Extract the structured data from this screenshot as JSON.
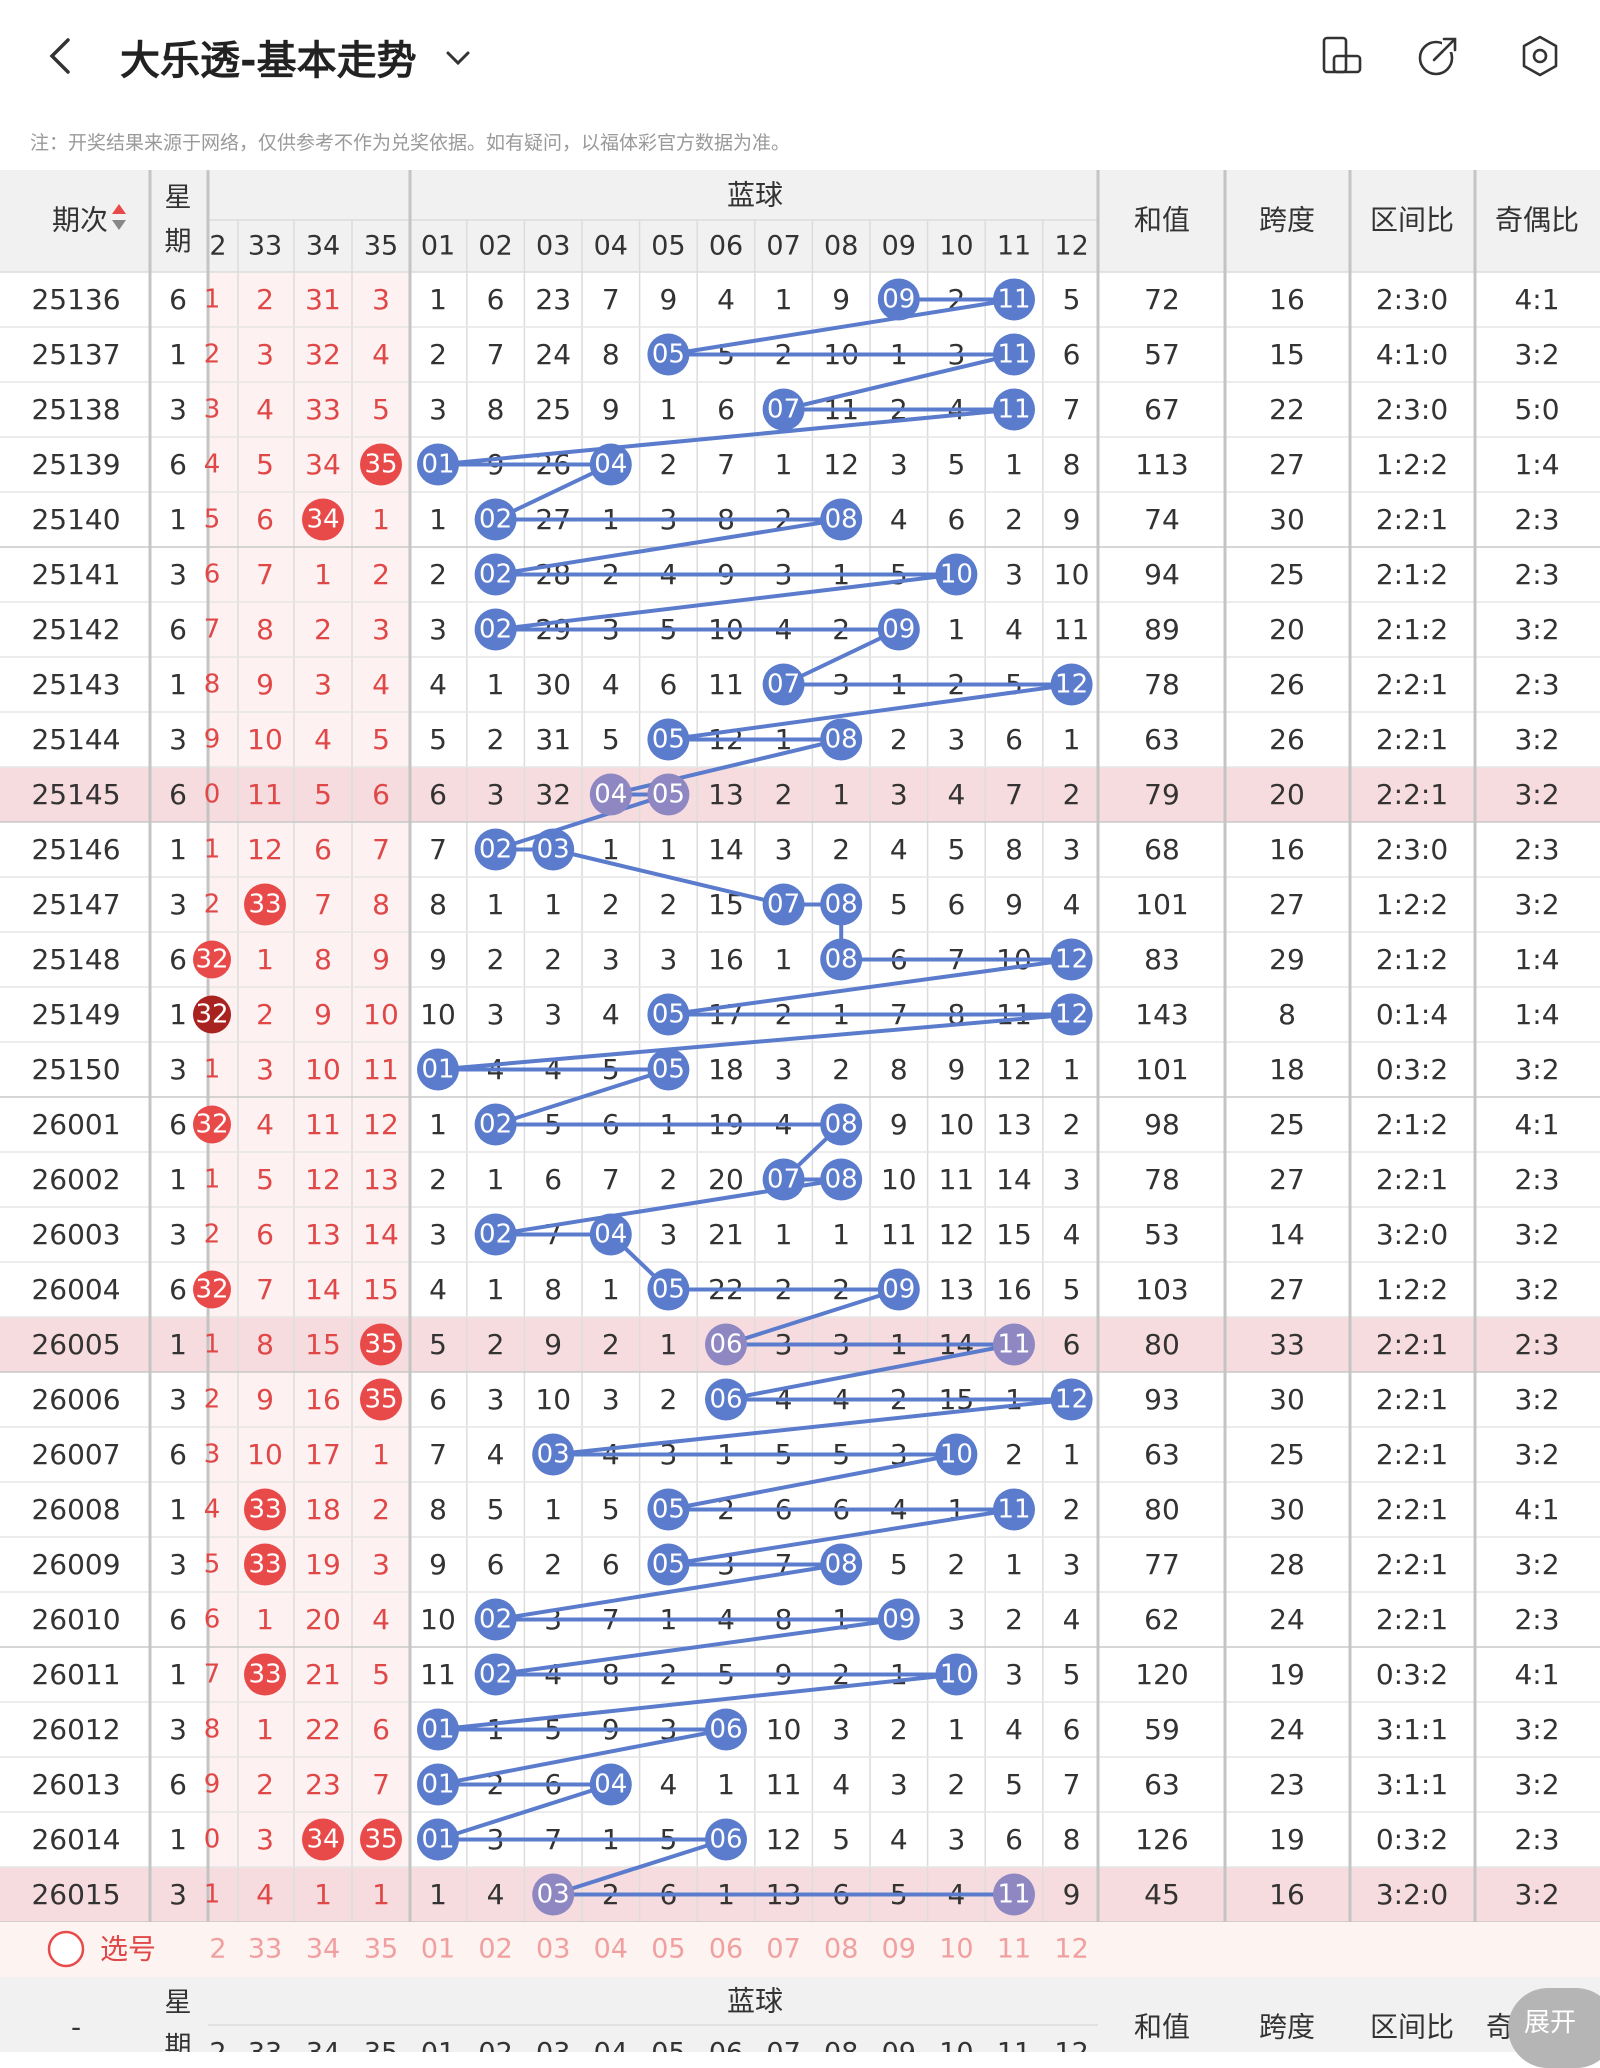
{
  "header": {
    "title": "大乐透-基本走势",
    "note": "注：开奖结果来源于网络，仅供参考不作为兑奖依据。如有疑问，以福体彩官方数据为准。"
  },
  "table": {
    "col_period": "期次",
    "col_week": "星期",
    "blue_group_label": "蓝球",
    "red_partial_header": [
      "2",
      "33",
      "34",
      "35"
    ],
    "blue_headers": [
      "01",
      "02",
      "03",
      "04",
      "05",
      "06",
      "07",
      "08",
      "09",
      "10",
      "11",
      "12"
    ],
    "col_sum": "和值",
    "col_span": "跨度",
    "col_zone": "区间比",
    "col_oddeven": "奇偶比",
    "rows": [
      {
        "period": "25136",
        "week": "6",
        "r": [
          "1",
          "2",
          "31",
          "3"
        ],
        "rh": [
          false,
          false,
          false,
          false
        ],
        "blue": [
          1,
          6,
          23,
          7,
          9,
          4,
          1,
          9,
          0,
          2,
          0,
          5
        ],
        "hit": [
          9,
          11
        ],
        "sum": "72",
        "span": "16",
        "zone": "2:3:0",
        "oe": "4:1",
        "hl": false
      },
      {
        "period": "25137",
        "week": "1",
        "r": [
          "2",
          "3",
          "32",
          "4"
        ],
        "rh": [
          false,
          false,
          false,
          false
        ],
        "blue": [
          2,
          7,
          24,
          8,
          0,
          5,
          2,
          10,
          1,
          3,
          0,
          6
        ],
        "hit": [
          5,
          11
        ],
        "sum": "57",
        "span": "15",
        "zone": "4:1:0",
        "oe": "3:2",
        "hl": false
      },
      {
        "period": "25138",
        "week": "3",
        "r": [
          "3",
          "4",
          "33",
          "5"
        ],
        "rh": [
          false,
          false,
          false,
          false
        ],
        "blue": [
          3,
          8,
          25,
          9,
          1,
          6,
          0,
          11,
          2,
          4,
          0,
          7
        ],
        "hit": [
          7,
          11
        ],
        "sum": "67",
        "span": "22",
        "zone": "2:3:0",
        "oe": "5:0",
        "hl": false
      },
      {
        "period": "25139",
        "week": "6",
        "r": [
          "4",
          "5",
          "34",
          "35"
        ],
        "rh": [
          false,
          false,
          false,
          true
        ],
        "blue": [
          0,
          9,
          26,
          0,
          2,
          7,
          1,
          12,
          3,
          5,
          1,
          8
        ],
        "hit": [
          1,
          4
        ],
        "sum": "113",
        "span": "27",
        "zone": "1:2:2",
        "oe": "1:4",
        "hl": false
      },
      {
        "period": "25140",
        "week": "1",
        "r": [
          "5",
          "6",
          "34",
          "1"
        ],
        "rh": [
          false,
          false,
          true,
          false
        ],
        "blue": [
          1,
          0,
          27,
          1,
          3,
          8,
          2,
          0,
          4,
          6,
          2,
          9
        ],
        "hit": [
          2,
          8
        ],
        "sum": "74",
        "span": "30",
        "zone": "2:2:1",
        "oe": "2:3",
        "hl": false
      },
      {
        "period": "25141",
        "week": "3",
        "r": [
          "6",
          "7",
          "1",
          "2"
        ],
        "rh": [
          false,
          false,
          false,
          false
        ],
        "blue": [
          2,
          0,
          28,
          2,
          4,
          9,
          3,
          1,
          5,
          0,
          3,
          10
        ],
        "hit": [
          2,
          10
        ],
        "sum": "94",
        "span": "25",
        "zone": "2:1:2",
        "oe": "2:3",
        "hl": false
      },
      {
        "period": "25142",
        "week": "6",
        "r": [
          "7",
          "8",
          "2",
          "3"
        ],
        "rh": [
          false,
          false,
          false,
          false
        ],
        "blue": [
          3,
          0,
          29,
          3,
          5,
          10,
          4,
          2,
          0,
          1,
          4,
          11
        ],
        "hit": [
          2,
          9
        ],
        "sum": "89",
        "span": "20",
        "zone": "2:1:2",
        "oe": "3:2",
        "hl": false
      },
      {
        "period": "25143",
        "week": "1",
        "r": [
          "8",
          "9",
          "3",
          "4"
        ],
        "rh": [
          false,
          false,
          false,
          false
        ],
        "blue": [
          4,
          1,
          30,
          4,
          6,
          11,
          0,
          3,
          1,
          2,
          5,
          0
        ],
        "hit": [
          7,
          12
        ],
        "sum": "78",
        "span": "26",
        "zone": "2:2:1",
        "oe": "2:3",
        "hl": false
      },
      {
        "period": "25144",
        "week": "3",
        "r": [
          "9",
          "10",
          "4",
          "5"
        ],
        "rh": [
          false,
          false,
          false,
          false
        ],
        "blue": [
          5,
          2,
          31,
          5,
          0,
          12,
          1,
          0,
          2,
          3,
          6,
          1
        ],
        "hit": [
          5,
          8
        ],
        "sum": "63",
        "span": "26",
        "zone": "2:2:1",
        "oe": "3:2",
        "hl": false
      },
      {
        "period": "25145",
        "week": "6",
        "r": [
          "10",
          "11",
          "5",
          "6"
        ],
        "rh": [
          false,
          false,
          false,
          false
        ],
        "blue": [
          6,
          3,
          32,
          0,
          0,
          13,
          2,
          1,
          3,
          4,
          7,
          2
        ],
        "hit": [
          4,
          5
        ],
        "sum": "79",
        "span": "20",
        "zone": "2:2:1",
        "oe": "3:2",
        "hl": true
      },
      {
        "period": "25146",
        "week": "1",
        "r": [
          "11",
          "12",
          "6",
          "7"
        ],
        "rh": [
          false,
          false,
          false,
          false
        ],
        "blue": [
          7,
          0,
          0,
          1,
          1,
          14,
          3,
          2,
          4,
          5,
          8,
          3
        ],
        "hit": [
          2,
          3
        ],
        "sum": "68",
        "span": "16",
        "zone": "2:3:0",
        "oe": "2:3",
        "hl": false
      },
      {
        "period": "25147",
        "week": "3",
        "r": [
          "12",
          "33",
          "7",
          "8"
        ],
        "rh": [
          false,
          true,
          false,
          false
        ],
        "blue": [
          8,
          1,
          1,
          2,
          2,
          15,
          0,
          0,
          5,
          6,
          9,
          4
        ],
        "hit": [
          7,
          8
        ],
        "sum": "101",
        "span": "27",
        "zone": "1:2:2",
        "oe": "3:2",
        "hl": false
      },
      {
        "period": "25148",
        "week": "6",
        "r": [
          "32",
          "1",
          "8",
          "9"
        ],
        "rh": [
          true,
          false,
          false,
          false
        ],
        "blue": [
          9,
          2,
          2,
          3,
          3,
          16,
          1,
          0,
          6,
          7,
          10,
          0
        ],
        "hit": [
          8,
          12
        ],
        "sum": "83",
        "span": "29",
        "zone": "2:1:2",
        "oe": "1:4",
        "hl": false
      },
      {
        "period": "25149",
        "week": "1",
        "r": [
          "32",
          "2",
          "9",
          "10"
        ],
        "rh": [
          true,
          false,
          false,
          false
        ],
        "blue": [
          10,
          3,
          3,
          4,
          0,
          17,
          2,
          1,
          7,
          8,
          11,
          0
        ],
        "hit": [
          5,
          12
        ],
        "sum": "143",
        "span": "8",
        "zone": "0:1:4",
        "oe": "1:4",
        "hl": false
      },
      {
        "period": "25150",
        "week": "3",
        "r": [
          "1",
          "3",
          "10",
          "11"
        ],
        "rh": [
          false,
          false,
          false,
          false
        ],
        "blue": [
          0,
          4,
          4,
          5,
          0,
          18,
          3,
          2,
          8,
          9,
          12,
          1
        ],
        "hit": [
          1,
          5
        ],
        "sum": "101",
        "span": "18",
        "zone": "0:3:2",
        "oe": "3:2",
        "hl": false
      },
      {
        "period": "26001",
        "week": "6",
        "r": [
          "32",
          "4",
          "11",
          "12"
        ],
        "rh": [
          true,
          false,
          false,
          false
        ],
        "blue": [
          1,
          0,
          5,
          6,
          1,
          19,
          4,
          0,
          9,
          10,
          13,
          2
        ],
        "hit": [
          2,
          8
        ],
        "sum": "98",
        "span": "25",
        "zone": "2:1:2",
        "oe": "4:1",
        "hl": false
      },
      {
        "period": "26002",
        "week": "1",
        "r": [
          "1",
          "5",
          "12",
          "13"
        ],
        "rh": [
          false,
          false,
          false,
          false
        ],
        "blue": [
          2,
          1,
          6,
          7,
          2,
          20,
          0,
          0,
          10,
          11,
          14,
          3
        ],
        "hit": [
          7,
          8
        ],
        "sum": "78",
        "span": "27",
        "zone": "2:2:1",
        "oe": "2:3",
        "hl": false
      },
      {
        "period": "26003",
        "week": "3",
        "r": [
          "2",
          "6",
          "13",
          "14"
        ],
        "rh": [
          false,
          false,
          false,
          false
        ],
        "blue": [
          3,
          0,
          7,
          0,
          3,
          21,
          1,
          1,
          11,
          12,
          15,
          4
        ],
        "hit": [
          2,
          4
        ],
        "sum": "53",
        "span": "14",
        "zone": "3:2:0",
        "oe": "3:2",
        "hl": false
      },
      {
        "period": "26004",
        "week": "6",
        "r": [
          "32",
          "7",
          "14",
          "15"
        ],
        "rh": [
          true,
          false,
          false,
          false
        ],
        "blue": [
          4,
          1,
          8,
          1,
          0,
          22,
          2,
          2,
          0,
          13,
          16,
          5
        ],
        "hit": [
          5,
          9
        ],
        "sum": "103",
        "span": "27",
        "zone": "1:2:2",
        "oe": "3:2",
        "hl": false
      },
      {
        "period": "26005",
        "week": "1",
        "r": [
          "1",
          "8",
          "15",
          "35"
        ],
        "rh": [
          false,
          false,
          false,
          true
        ],
        "blue": [
          5,
          2,
          9,
          2,
          1,
          0,
          3,
          3,
          1,
          14,
          0,
          6
        ],
        "hit": [
          6,
          11
        ],
        "sum": "80",
        "span": "33",
        "zone": "2:2:1",
        "oe": "2:3",
        "hl": true
      },
      {
        "period": "26006",
        "week": "3",
        "r": [
          "2",
          "9",
          "16",
          "35"
        ],
        "rh": [
          false,
          false,
          false,
          true
        ],
        "blue": [
          6,
          3,
          10,
          3,
          2,
          0,
          4,
          4,
          2,
          15,
          1,
          0
        ],
        "hit": [
          6,
          12
        ],
        "sum": "93",
        "span": "30",
        "zone": "2:2:1",
        "oe": "3:2",
        "hl": false
      },
      {
        "period": "26007",
        "week": "6",
        "r": [
          "3",
          "10",
          "17",
          "1"
        ],
        "rh": [
          false,
          false,
          false,
          false
        ],
        "blue": [
          7,
          4,
          0,
          4,
          3,
          1,
          5,
          5,
          3,
          0,
          2,
          1
        ],
        "hit": [
          3,
          10
        ],
        "sum": "63",
        "span": "25",
        "zone": "2:2:1",
        "oe": "3:2",
        "hl": false
      },
      {
        "period": "26008",
        "week": "1",
        "r": [
          "4",
          "33",
          "18",
          "2"
        ],
        "rh": [
          false,
          true,
          false,
          false
        ],
        "blue": [
          8,
          5,
          1,
          5,
          0,
          2,
          6,
          6,
          4,
          1,
          0,
          2
        ],
        "hit": [
          5,
          11
        ],
        "sum": "80",
        "span": "30",
        "zone": "2:2:1",
        "oe": "4:1",
        "hl": false
      },
      {
        "period": "26009",
        "week": "3",
        "r": [
          "5",
          "33",
          "19",
          "3"
        ],
        "rh": [
          false,
          true,
          false,
          false
        ],
        "blue": [
          9,
          6,
          2,
          6,
          0,
          3,
          7,
          0,
          5,
          2,
          1,
          3
        ],
        "hit": [
          5,
          8
        ],
        "sum": "77",
        "span": "28",
        "zone": "2:2:1",
        "oe": "3:2",
        "hl": false
      },
      {
        "period": "26010",
        "week": "6",
        "r": [
          "6",
          "1",
          "20",
          "4"
        ],
        "rh": [
          false,
          false,
          false,
          false
        ],
        "blue": [
          10,
          0,
          3,
          7,
          1,
          4,
          8,
          1,
          0,
          3,
          2,
          4
        ],
        "hit": [
          2,
          9
        ],
        "sum": "62",
        "span": "24",
        "zone": "2:2:1",
        "oe": "2:3",
        "hl": false
      },
      {
        "period": "26011",
        "week": "1",
        "r": [
          "7",
          "33",
          "21",
          "5"
        ],
        "rh": [
          false,
          true,
          false,
          false
        ],
        "blue": [
          11,
          0,
          4,
          8,
          2,
          5,
          9,
          2,
          1,
          0,
          3,
          5
        ],
        "hit": [
          2,
          10
        ],
        "sum": "120",
        "span": "19",
        "zone": "0:3:2",
        "oe": "4:1",
        "hl": false
      },
      {
        "period": "26012",
        "week": "3",
        "r": [
          "8",
          "1",
          "22",
          "6"
        ],
        "rh": [
          false,
          false,
          false,
          false
        ],
        "blue": [
          0,
          1,
          5,
          9,
          3,
          0,
          10,
          3,
          2,
          1,
          4,
          6
        ],
        "hit": [
          1,
          6
        ],
        "sum": "59",
        "span": "24",
        "zone": "3:1:1",
        "oe": "3:2",
        "hl": false
      },
      {
        "period": "26013",
        "week": "6",
        "r": [
          "9",
          "2",
          "23",
          "7"
        ],
        "rh": [
          false,
          false,
          false,
          false
        ],
        "blue": [
          0,
          2,
          6,
          0,
          4,
          1,
          11,
          4,
          3,
          2,
          5,
          7
        ],
        "hit": [
          1,
          4
        ],
        "sum": "63",
        "span": "23",
        "zone": "3:1:1",
        "oe": "3:2",
        "hl": false
      },
      {
        "period": "26014",
        "week": "1",
        "r": [
          "10",
          "3",
          "34",
          "35"
        ],
        "rh": [
          false,
          false,
          true,
          true
        ],
        "blue": [
          0,
          3,
          7,
          1,
          5,
          0,
          12,
          5,
          4,
          3,
          6,
          8
        ],
        "hit": [
          1,
          6
        ],
        "sum": "126",
        "span": "19",
        "zone": "0:3:2",
        "oe": "2:3",
        "hl": false
      },
      {
        "period": "26015",
        "week": "3",
        "r": [
          "11",
          "4",
          "1",
          "1"
        ],
        "rh": [
          false,
          false,
          false,
          false
        ],
        "blue": [
          1,
          4,
          0,
          2,
          6,
          1,
          13,
          6,
          5,
          4,
          0,
          9
        ],
        "hit": [
          3,
          11
        ],
        "sum": "45",
        "span": "16",
        "zone": "3:2:0",
        "oe": "3:2",
        "hl": true
      }
    ],
    "select_row_label": "选号",
    "footer_period": "-",
    "footer_oddeven_partial": "奇"
  },
  "expand_button": "展开",
  "colors": {
    "blue_ball": "#5b7ccc",
    "blue_ball_hl": "#8e87c2",
    "red_ball": "#e84a4a",
    "dark_red_ball": "#a8221f",
    "red_text": "#e04848",
    "row_highlight": "#f7dcdf",
    "header_bg": "#f1f1f1"
  }
}
